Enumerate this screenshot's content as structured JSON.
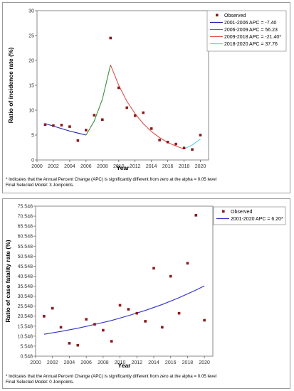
{
  "chart_data": [
    {
      "type": "line",
      "title": "",
      "xlabel": "Year",
      "ylabel": "Ratio of incidence rate (%)",
      "xlim": [
        2000,
        2021
      ],
      "ylim": [
        0,
        30
      ],
      "xticks": [
        "2000",
        "2002",
        "2004",
        "2006",
        "2008",
        "2010",
        "2012",
        "2014",
        "2016",
        "2018",
        "2020"
      ],
      "yticks": [
        "0",
        "5",
        "10",
        "15",
        "20",
        "25",
        "30"
      ],
      "observed_label": "Observed",
      "observed": [
        {
          "x": 2001,
          "y": 7.1
        },
        {
          "x": 2002,
          "y": 6.9
        },
        {
          "x": 2003,
          "y": 7.0
        },
        {
          "x": 2004,
          "y": 6.7
        },
        {
          "x": 2005,
          "y": 3.9
        },
        {
          "x": 2006,
          "y": 6.0
        },
        {
          "x": 2007,
          "y": 9.0
        },
        {
          "x": 2008,
          "y": 8.1
        },
        {
          "x": 2009,
          "y": 24.5
        },
        {
          "x": 2010,
          "y": 14.5
        },
        {
          "x": 2011,
          "y": 10.5
        },
        {
          "x": 2012,
          "y": 8.9
        },
        {
          "x": 2013,
          "y": 9.5
        },
        {
          "x": 2014,
          "y": 6.3
        },
        {
          "x": 2015,
          "y": 4.0
        },
        {
          "x": 2016,
          "y": 3.6
        },
        {
          "x": 2017,
          "y": 3.2
        },
        {
          "x": 2018,
          "y": 2.4
        },
        {
          "x": 2019,
          "y": 2.1
        },
        {
          "x": 2020,
          "y": 5.0
        }
      ],
      "series": [
        {
          "name": "2001-2006 APC = -7.40",
          "color": "#1f1fb4",
          "x": [
            2001,
            2002,
            2003,
            2004,
            2005,
            2006
          ],
          "values": [
            7.3,
            6.8,
            6.3,
            5.8,
            5.4,
            5.0
          ]
        },
        {
          "name": "2006-2009 APC = 56.23",
          "color": "#3a8f3a",
          "x": [
            2006,
            2007,
            2008,
            2009
          ],
          "values": [
            5.0,
            7.8,
            12.2,
            19.1
          ]
        },
        {
          "name": "2009-2018 APC = -21.40*",
          "color": "#e05050",
          "x": [
            2009,
            2010,
            2011,
            2012,
            2013,
            2014,
            2015,
            2016,
            2017,
            2018
          ],
          "values": [
            19.1,
            15.0,
            11.8,
            9.3,
            7.3,
            5.7,
            4.5,
            3.5,
            2.8,
            2.2
          ]
        },
        {
          "name": "2018-2020 APC = 37.76",
          "color": "#5fd3e0",
          "x": [
            2018,
            2019,
            2020
          ],
          "values": [
            2.2,
            3.0,
            4.2
          ]
        }
      ],
      "legend_position": "top-right",
      "marker_color": "#8b1a1a"
    },
    {
      "type": "line",
      "title": "",
      "xlabel": "Year",
      "ylabel": "Ratio of case fatality rate (%)",
      "xlim": [
        2000,
        2021
      ],
      "ylim": [
        0.548,
        75.548
      ],
      "xticks": [
        "2000",
        "2002",
        "2004",
        "2006",
        "2008",
        "2010",
        "2012",
        "2014",
        "2016",
        "2018",
        "2020"
      ],
      "yticks": [
        "0.548",
        "5.548",
        "10.548",
        "15.548",
        "20.548",
        "25.548",
        "30.548",
        "35.548",
        "40.548",
        "45.548",
        "50.548",
        "55.548",
        "60.548",
        "65.548",
        "70.548",
        "75.548"
      ],
      "observed_label": "Observed",
      "observed": [
        {
          "x": 2001,
          "y": 20.5
        },
        {
          "x": 2002,
          "y": 24.5
        },
        {
          "x": 2003,
          "y": 15.0
        },
        {
          "x": 2004,
          "y": 7.0
        },
        {
          "x": 2005,
          "y": 6.0
        },
        {
          "x": 2006,
          "y": 19.0
        },
        {
          "x": 2007,
          "y": 16.5
        },
        {
          "x": 2008,
          "y": 13.5
        },
        {
          "x": 2009,
          "y": 8.0
        },
        {
          "x": 2010,
          "y": 26.0
        },
        {
          "x": 2011,
          "y": 24.0
        },
        {
          "x": 2012,
          "y": 22.0
        },
        {
          "x": 2013,
          "y": 18.0
        },
        {
          "x": 2014,
          "y": 44.5
        },
        {
          "x": 2015,
          "y": 15.0
        },
        {
          "x": 2016,
          "y": 40.5
        },
        {
          "x": 2017,
          "y": 22.0
        },
        {
          "x": 2018,
          "y": 47.0
        },
        {
          "x": 2019,
          "y": 71.0
        },
        {
          "x": 2020,
          "y": 18.5
        }
      ],
      "series": [
        {
          "name": "2001-2020 APC = 6.20*",
          "color": "#3030c8",
          "x": [
            2001,
            2003,
            2005,
            2007,
            2009,
            2011,
            2013,
            2015,
            2017,
            2019,
            2020
          ],
          "values": [
            11.5,
            12.9,
            14.5,
            16.4,
            18.4,
            20.8,
            23.4,
            26.4,
            29.8,
            33.6,
            35.7
          ]
        }
      ],
      "legend_position": "top-right",
      "marker_color": "#8b1a1a"
    }
  ],
  "footnotes": {
    "top_line1": "* Indicates that the Annual Percent Change (APC) is significantly different from zero at the alpha = 0.05 level",
    "top_line2": "Final Selected Model: 3 Joinpoints.",
    "bottom_line1": "* Indicates that the Annual Percent Change (APC) is significantly different from zero at the alpha = 0.05 level",
    "bottom_line2": "Final Selected Model: 0 Joinpoints."
  }
}
